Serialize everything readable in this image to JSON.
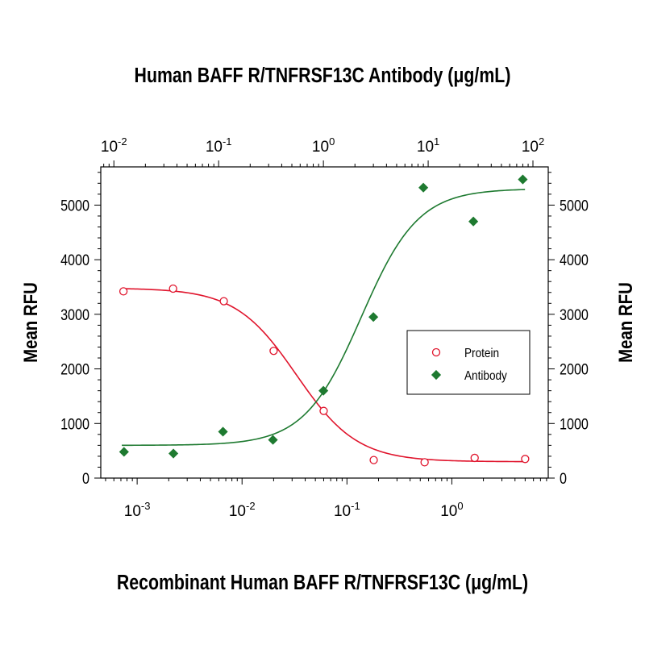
{
  "chart_data": {
    "type": "scatter",
    "title": "Human BAFF R/TNFRSF13C Antibody (μg/mL)",
    "xlabel": "Recombinant Human BAFF R/TNFRSF13C (μg/mL)",
    "ylabel_left": "Mean RFU",
    "ylabel_right": "Mean RFU",
    "ylim": [
      0,
      5700
    ],
    "y_ticks": [
      0,
      1000,
      2000,
      3000,
      4000,
      5000
    ],
    "x_bottom": {
      "scale": "log",
      "range": [
        0.00045,
        8.3
      ],
      "ticks": [
        {
          "base": "10",
          "exp": "-3",
          "value": 0.001
        },
        {
          "base": "10",
          "exp": "-2",
          "value": 0.01
        },
        {
          "base": "10",
          "exp": "-1",
          "value": 0.1
        },
        {
          "base": "10",
          "exp": "0",
          "value": 1
        }
      ]
    },
    "x_top": {
      "scale": "log",
      "range": [
        0.0075,
        140
      ],
      "ticks": [
        {
          "base": "10",
          "exp": "-2",
          "value": 0.01
        },
        {
          "base": "10",
          "exp": "-1",
          "value": 0.1
        },
        {
          "base": "10",
          "exp": "0",
          "value": 1
        },
        {
          "base": "10",
          "exp": "1",
          "value": 10
        },
        {
          "base": "10",
          "exp": "2",
          "value": 100
        }
      ]
    },
    "legend": {
      "position": "right",
      "entries": [
        "Protein",
        "Antibody"
      ]
    },
    "series": [
      {
        "name": "Protein",
        "axis": "bottom",
        "marker": "open-circle",
        "color": "#e0142c",
        "x": [
          0.00074,
          0.0022,
          0.0067,
          0.02,
          0.06,
          0.18,
          0.55,
          1.65,
          5.0
        ],
        "y": [
          3420,
          3470,
          3240,
          2330,
          1230,
          330,
          290,
          370,
          350
        ],
        "fit": {
          "top": 3480,
          "bottom": 300,
          "ec50": 0.033,
          "hill": 1.5
        }
      },
      {
        "name": "Antibody",
        "axis": "top",
        "marker": "filled-diamond",
        "color": "#1e7a30",
        "x": [
          0.0125,
          0.037,
          0.11,
          0.33,
          1.0,
          3.0,
          9.0,
          27,
          80
        ],
        "y": [
          480,
          450,
          850,
          700,
          1600,
          2950,
          5320,
          4700,
          5470
        ],
        "fit": {
          "top": 5300,
          "bottom": 600,
          "ec50": 2.3,
          "hill": 1.6
        }
      }
    ]
  }
}
